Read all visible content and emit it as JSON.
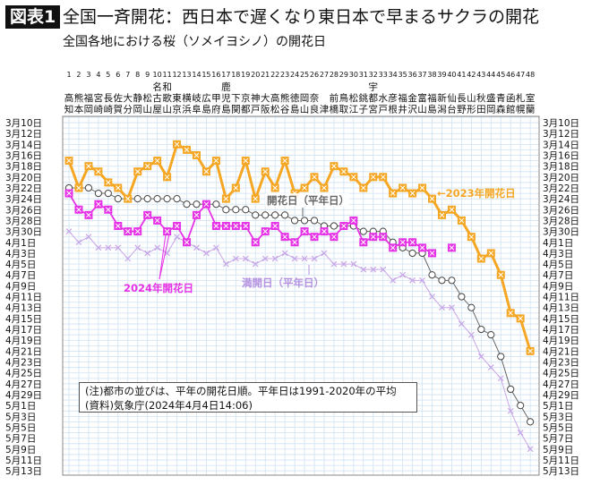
{
  "header": {
    "badge": "図表1",
    "title": "全国一斉開花：西日本で遅くなり東日本で早まるサクラの開花",
    "subtitle": "全国各地における桜（ソメイヨシノ）の開花日"
  },
  "note": {
    "line1": "(注)都市の並びは、平年の開花日順。平年日は1991-2020年の平均",
    "line2": "(資料)気象庁(2024年4月4日14:06)"
  },
  "chart_data": {
    "type": "line",
    "title": "",
    "grid": true,
    "y_axis": {
      "type": "date",
      "ticks_every_days": 2,
      "range": [
        "3/10",
        "5/13"
      ],
      "inverted": true,
      "label_format": "M月D日",
      "both_sides": true
    },
    "categories_numbers": [
      "1",
      "2",
      "3",
      "4",
      "5",
      "6",
      "7",
      "8",
      "9",
      "10",
      "11",
      "12",
      "13",
      "14",
      "15",
      "16",
      "17",
      "18",
      "19",
      "20",
      "21",
      "22",
      "23",
      "24",
      "25",
      "26",
      "27",
      "28",
      "29",
      "30",
      "31",
      "32",
      "33",
      "34",
      "35",
      "36",
      "37",
      "38",
      "39",
      "40",
      "41",
      "42",
      "43",
      "44",
      "45",
      "46",
      "47",
      "48"
    ],
    "categories": [
      "高知",
      "熊本",
      "福岡",
      "宮崎",
      "長崎",
      "佐賀",
      "大分",
      "静岡",
      "松山",
      "名古屋",
      "和歌山",
      "東京",
      "横浜",
      "岐阜",
      "広島",
      "甲府",
      "鹿児島",
      "下関",
      "京都",
      "神戸",
      "大阪",
      "高松",
      "熊谷",
      "徳島",
      "岡山",
      "奈良",
      "津",
      "前橋",
      "鳥取",
      "松江",
      "銚子",
      "宇都宮",
      "水戸",
      "彦根",
      "福井",
      "金沢",
      "富山",
      "福島",
      "新潟",
      "仙台",
      "長野",
      "山形",
      "秋田",
      "盛岡",
      "青森",
      "函館",
      "札幌",
      "室蘭"
    ],
    "series": [
      {
        "name": "2023年開花日",
        "label": "←2023年開花日",
        "color": "#f5a623",
        "marker": "square-x",
        "values": [
          "3/17",
          "3/22",
          "3/18",
          "3/19",
          "3/21",
          "3/22",
          "3/24",
          "3/19",
          "3/18",
          "3/17",
          "3/20",
          "3/14",
          "3/15",
          "3/16",
          "3/19",
          "3/17",
          "3/24",
          "3/22",
          "3/17",
          "3/24",
          "3/19",
          "3/22",
          "3/17",
          "3/23",
          "3/22",
          "3/20",
          "3/22",
          "3/18",
          "3/19",
          "3/20",
          "3/22",
          "3/20",
          "3/20",
          "3/23",
          "3/22",
          "3/23",
          "3/22",
          "3/24",
          "3/27",
          "3/26",
          "3/28",
          "3/31",
          "4/4",
          "4/3",
          "4/7",
          "4/14",
          "4/15",
          "4/21"
        ]
      },
      {
        "name": "開花日（平年日）",
        "label": "開花日（平年日）",
        "color": "#555555",
        "marker": "circle",
        "values": [
          "3/22",
          "3/22",
          "3/22",
          "3/23",
          "3/23",
          "3/24",
          "3/24",
          "3/24",
          "3/24",
          "3/24",
          "3/24",
          "3/24",
          "3/25",
          "3/25",
          "3/25",
          "3/25",
          "3/26",
          "3/26",
          "3/26",
          "3/27",
          "3/27",
          "3/27",
          "3/27",
          "3/28",
          "3/28",
          "3/28",
          "3/29",
          "3/29",
          "3/29",
          "3/29",
          "3/30",
          "3/30",
          "3/30",
          "4/1",
          "4/2",
          "4/3",
          "4/3",
          "4/7",
          "4/8",
          "4/8",
          "4/11",
          "4/13",
          "4/17",
          "4/18",
          "4/22",
          "4/28",
          "5/1",
          "5/4"
        ]
      },
      {
        "name": "2024年開花日",
        "label": "2024年開花日",
        "color": "#e632e6",
        "marker": "square-x",
        "values": [
          "3/23",
          "3/26",
          "3/27",
          "3/25",
          "3/26",
          "3/29",
          "3/30",
          "3/30",
          "3/27",
          "3/28",
          "3/30",
          "3/29",
          "4/1",
          "3/27",
          "3/25",
          "3/29",
          "3/29",
          "3/29",
          "3/29",
          "4/1",
          "3/30",
          "3/29",
          "3/31",
          "4/1",
          "3/30",
          "3/31",
          "3/30",
          "3/31",
          "3/29",
          "3/28",
          "4/1",
          "3/31",
          "3/31",
          "4/2",
          "4/1",
          "4/1",
          "4/2",
          "4/3",
          null,
          "4/2",
          null,
          null,
          null,
          null,
          null,
          null,
          null,
          null
        ]
      },
      {
        "name": "満開日（平年日）",
        "label": "満開日（平年日）",
        "color": "#c7a6e6",
        "marker": "x",
        "values": [
          "3/30",
          "4/1",
          "3/31",
          "4/2",
          "4/2",
          "4/2",
          "4/4",
          "4/2",
          "4/3",
          "4/2",
          "4/3",
          "3/31",
          "4/1",
          "4/2",
          "4/3",
          "4/2",
          "4/5",
          "4/4",
          "4/4",
          "4/5",
          "4/4",
          "4/4",
          "4/3",
          "4/4",
          "4/4",
          "4/4",
          "4/3",
          "4/5",
          "4/5",
          "4/5",
          "4/6",
          "4/6",
          "4/6",
          "4/8",
          "4/7",
          "4/8",
          "4/8",
          "4/11",
          "4/13",
          "4/13",
          "4/16",
          "4/18",
          "4/22",
          "4/24",
          "4/26",
          "5/2",
          "5/6",
          "5/9"
        ]
      }
    ]
  }
}
